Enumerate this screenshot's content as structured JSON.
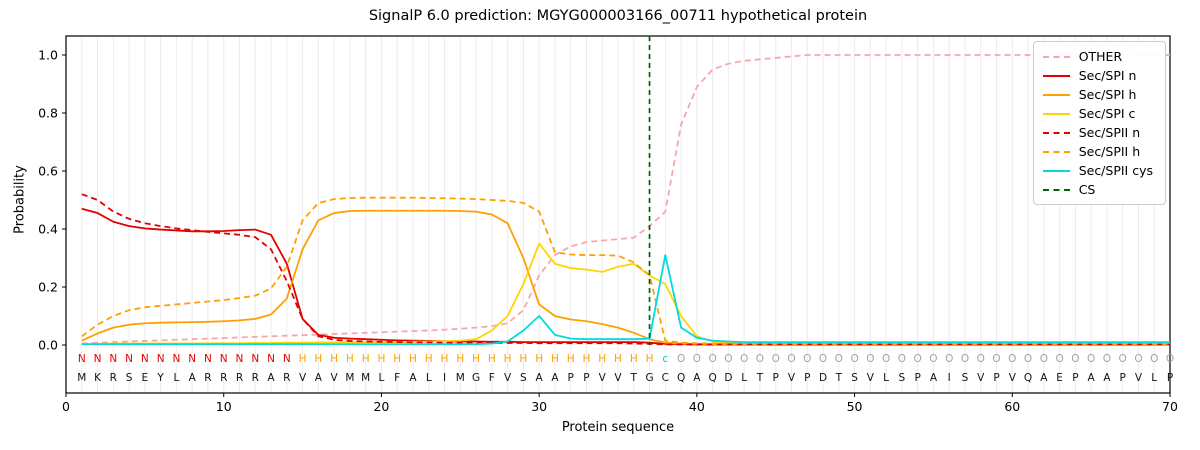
{
  "chart_data": {
    "type": "line",
    "title": "SignalP 6.0 prediction: MGYG000003166_00711 hypothetical protein",
    "xlabel": "Protein sequence",
    "ylabel": "Probability",
    "xlim": [
      0,
      70
    ],
    "ylim": [
      0,
      1.0
    ],
    "x_ticks": [
      0,
      10,
      20,
      30,
      40,
      50,
      60,
      70
    ],
    "y_ticks": [
      0.0,
      0.2,
      0.4,
      0.6,
      0.8,
      1.0
    ],
    "grid": "vertical-per-residue",
    "legend_position": "upper right",
    "sequence": "MKRSEYLARRRRARVAVMMLFALIMGFVSAAPPVVTGCQAQDLTPVPDTSVLSPAISVPVQAEPAAPVLP",
    "region_labels": "NNNNNNNNNNNNNNHHHHHHHHHHHHHHHHHHHHHHHcOOOOOOOOOOOOOOOOOOOOOOOOOOOOOOOO",
    "region_colors": {
      "N": "#e50000",
      "H": "#ffa000",
      "c": "#00cccc",
      "O": "#a3a3a3"
    },
    "sequence_color": "#111111",
    "cs_position": 37,
    "series": [
      {
        "name": "OTHER",
        "color": "#f7a6ad",
        "dash": true,
        "values": [
          0.005,
          0.008,
          0.01,
          0.012,
          0.014,
          0.016,
          0.018,
          0.02,
          0.022,
          0.024,
          0.026,
          0.028,
          0.03,
          0.032,
          0.034,
          0.036,
          0.038,
          0.04,
          0.042,
          0.044,
          0.046,
          0.048,
          0.05,
          0.053,
          0.056,
          0.06,
          0.065,
          0.075,
          0.12,
          0.24,
          0.31,
          0.34,
          0.355,
          0.36,
          0.365,
          0.37,
          0.41,
          0.46,
          0.76,
          0.89,
          0.95,
          0.97,
          0.98,
          0.985,
          0.99,
          0.995,
          1.0,
          1.0,
          1.0,
          1.0,
          1.0,
          1.0,
          1.0,
          1.0,
          1.0,
          1.0,
          1.0,
          1.0,
          1.0,
          1.0,
          1.0,
          1.0,
          1.0,
          1.0,
          1.0,
          1.0,
          1.0,
          1.0,
          1.0,
          1.0
        ]
      },
      {
        "name": "Sec/SPI n",
        "color": "#e50000",
        "dash": false,
        "values": [
          0.47,
          0.455,
          0.425,
          0.41,
          0.402,
          0.398,
          0.395,
          0.392,
          0.392,
          0.393,
          0.396,
          0.398,
          0.38,
          0.28,
          0.09,
          0.035,
          0.025,
          0.022,
          0.02,
          0.018,
          0.016,
          0.015,
          0.014,
          0.013,
          0.012,
          0.012,
          0.011,
          0.011,
          0.01,
          0.01,
          0.01,
          0.01,
          0.01,
          0.01,
          0.01,
          0.01,
          0.008,
          0.004,
          0.003,
          0.002,
          0.002,
          0.002,
          0.002,
          0.002,
          0.002,
          0.002,
          0.002,
          0.002,
          0.002,
          0.002,
          0.002,
          0.002,
          0.002,
          0.002,
          0.002,
          0.002,
          0.002,
          0.002,
          0.002,
          0.002,
          0.002,
          0.002,
          0.002,
          0.002,
          0.002,
          0.002,
          0.002,
          0.002,
          0.002,
          0.002
        ]
      },
      {
        "name": "Sec/SPI h",
        "color": "#ffa000",
        "dash": false,
        "values": [
          0.015,
          0.04,
          0.06,
          0.07,
          0.075,
          0.077,
          0.078,
          0.079,
          0.08,
          0.082,
          0.085,
          0.09,
          0.105,
          0.16,
          0.33,
          0.43,
          0.455,
          0.462,
          0.463,
          0.463,
          0.463,
          0.463,
          0.463,
          0.463,
          0.462,
          0.46,
          0.45,
          0.42,
          0.3,
          0.14,
          0.1,
          0.088,
          0.082,
          0.072,
          0.06,
          0.042,
          0.02,
          0.008,
          0.005,
          0.004,
          0.003,
          0.003,
          0.003,
          0.003,
          0.003,
          0.003,
          0.003,
          0.003,
          0.003,
          0.003,
          0.003,
          0.003,
          0.003,
          0.003,
          0.003,
          0.003,
          0.003,
          0.003,
          0.003,
          0.003,
          0.003,
          0.003,
          0.003,
          0.003,
          0.003,
          0.003,
          0.003,
          0.003,
          0.003,
          0.003
        ]
      },
      {
        "name": "Sec/SPI c",
        "color": "#ffd500",
        "dash": false,
        "values": [
          0.003,
          0.004,
          0.005,
          0.005,
          0.005,
          0.005,
          0.005,
          0.005,
          0.006,
          0.006,
          0.006,
          0.007,
          0.007,
          0.008,
          0.008,
          0.009,
          0.009,
          0.01,
          0.01,
          0.01,
          0.01,
          0.011,
          0.012,
          0.013,
          0.015,
          0.02,
          0.05,
          0.1,
          0.21,
          0.35,
          0.28,
          0.265,
          0.26,
          0.252,
          0.27,
          0.28,
          0.24,
          0.21,
          0.1,
          0.03,
          0.012,
          0.008,
          0.005,
          0.005,
          0.005,
          0.005,
          0.005,
          0.005,
          0.005,
          0.005,
          0.005,
          0.005,
          0.005,
          0.005,
          0.005,
          0.005,
          0.005,
          0.005,
          0.005,
          0.005,
          0.005,
          0.005,
          0.005,
          0.005,
          0.005,
          0.005,
          0.005,
          0.005,
          0.005,
          0.005
        ]
      },
      {
        "name": "Sec/SPII n",
        "color": "#e50000",
        "dash": true,
        "values": [
          0.52,
          0.5,
          0.46,
          0.435,
          0.42,
          0.41,
          0.402,
          0.396,
          0.39,
          0.385,
          0.38,
          0.372,
          0.33,
          0.22,
          0.09,
          0.03,
          0.018,
          0.014,
          0.012,
          0.011,
          0.01,
          0.009,
          0.009,
          0.008,
          0.008,
          0.008,
          0.007,
          0.007,
          0.007,
          0.006,
          0.006,
          0.006,
          0.006,
          0.006,
          0.006,
          0.005,
          0.004,
          0.002,
          0.002,
          0.002,
          0.002,
          0.002,
          0.002,
          0.002,
          0.002,
          0.002,
          0.002,
          0.002,
          0.002,
          0.002,
          0.002,
          0.002,
          0.002,
          0.002,
          0.002,
          0.002,
          0.002,
          0.002,
          0.002,
          0.002,
          0.002,
          0.002,
          0.002,
          0.002,
          0.002,
          0.002,
          0.002,
          0.002,
          0.002,
          0.002
        ]
      },
      {
        "name": "Sec/SPII h",
        "color": "#ffa000",
        "dash": true,
        "values": [
          0.03,
          0.07,
          0.1,
          0.12,
          0.13,
          0.135,
          0.14,
          0.145,
          0.15,
          0.155,
          0.162,
          0.17,
          0.195,
          0.27,
          0.43,
          0.49,
          0.503,
          0.507,
          0.508,
          0.508,
          0.508,
          0.508,
          0.507,
          0.506,
          0.505,
          0.503,
          0.5,
          0.497,
          0.49,
          0.46,
          0.32,
          0.312,
          0.31,
          0.31,
          0.308,
          0.285,
          0.24,
          0.015,
          0.008,
          0.006,
          0.005,
          0.005,
          0.005,
          0.005,
          0.005,
          0.005,
          0.005,
          0.005,
          0.005,
          0.005,
          0.005,
          0.005,
          0.005,
          0.005,
          0.005,
          0.005,
          0.005,
          0.005,
          0.005,
          0.005,
          0.005,
          0.005,
          0.005,
          0.005,
          0.005,
          0.005,
          0.005,
          0.005,
          0.005,
          0.005
        ]
      },
      {
        "name": "Sec/SPII cys",
        "color": "#00dcdc",
        "dash": false,
        "values": [
          0.003,
          0.003,
          0.003,
          0.003,
          0.003,
          0.003,
          0.003,
          0.003,
          0.003,
          0.003,
          0.003,
          0.003,
          0.003,
          0.003,
          0.003,
          0.003,
          0.003,
          0.003,
          0.003,
          0.003,
          0.003,
          0.003,
          0.003,
          0.003,
          0.003,
          0.003,
          0.005,
          0.012,
          0.05,
          0.1,
          0.035,
          0.022,
          0.02,
          0.02,
          0.02,
          0.02,
          0.022,
          0.31,
          0.06,
          0.025,
          0.015,
          0.012,
          0.01,
          0.01,
          0.01,
          0.01,
          0.01,
          0.01,
          0.01,
          0.01,
          0.01,
          0.01,
          0.01,
          0.01,
          0.01,
          0.01,
          0.01,
          0.01,
          0.01,
          0.01,
          0.01,
          0.01,
          0.01,
          0.01,
          0.01,
          0.01,
          0.01,
          0.01,
          0.01,
          0.01
        ]
      },
      {
        "name": "CS",
        "color": "#006400",
        "dash": true,
        "vline_x": 37
      }
    ]
  }
}
